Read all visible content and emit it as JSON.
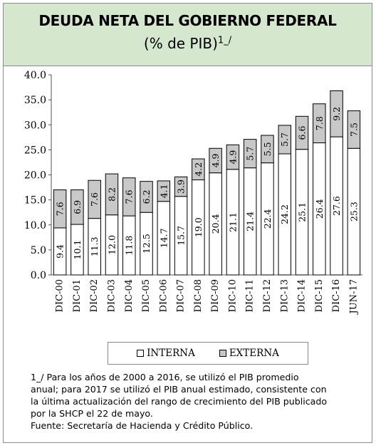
{
  "header": {
    "title": "DEUDA NETA DEL GOBIERNO FEDERAL",
    "subtitle": "(% de PIB)",
    "subtitle_note": "1_/"
  },
  "colors": {
    "header_bg": "#d6e7cf",
    "interna": "#ffffff",
    "externa": "#c8c8c8"
  },
  "chart_data": {
    "type": "bar",
    "stacked": true,
    "categories": [
      "DIC-00",
      "DIC-01",
      "DIC-02",
      "DIC-03",
      "DIC-04",
      "DIC-05",
      "DIC-06",
      "DIC-07",
      "DIC-08",
      "DIC-09",
      "DIC-10",
      "DIC-11",
      "DIC-12",
      "DIC-13",
      "DIC-14",
      "DIC-15",
      "DIC-16",
      "JUN-17"
    ],
    "series": [
      {
        "name": "INTERNA",
        "values": [
          9.4,
          10.1,
          11.3,
          12.0,
          11.8,
          12.5,
          14.7,
          15.7,
          19.0,
          20.4,
          21.1,
          21.4,
          22.4,
          24.2,
          25.1,
          26.4,
          27.6,
          25.3
        ]
      },
      {
        "name": "EXTERNA",
        "values": [
          7.6,
          6.9,
          7.6,
          8.2,
          7.6,
          6.2,
          4.1,
          3.9,
          4.2,
          4.9,
          4.9,
          5.7,
          5.5,
          5.7,
          6.6,
          7.8,
          9.2,
          7.5
        ]
      }
    ],
    "ylim": [
      0,
      40
    ],
    "yticks": [
      "0.0",
      "5.0",
      "10.0",
      "15.0",
      "20.0",
      "25.0",
      "30.0",
      "35.0",
      "40.0"
    ],
    "grid": false,
    "legend_position": "bottom"
  },
  "legend": {
    "interna": "INTERNA",
    "externa": "EXTERNA"
  },
  "footnote": {
    "lines": [
      "1_/ Para los años de 2000 a 2016, se utilizó el PIB promedio",
      "anual; para 2017 se utilizó el PIB anual estimado, consistente con",
      "la última actualización del rango de crecimiento del PIB publicado",
      "por la SHCP el 22 de mayo.",
      "Fuente: Secretaría de Hacienda y Crédito Público."
    ]
  }
}
